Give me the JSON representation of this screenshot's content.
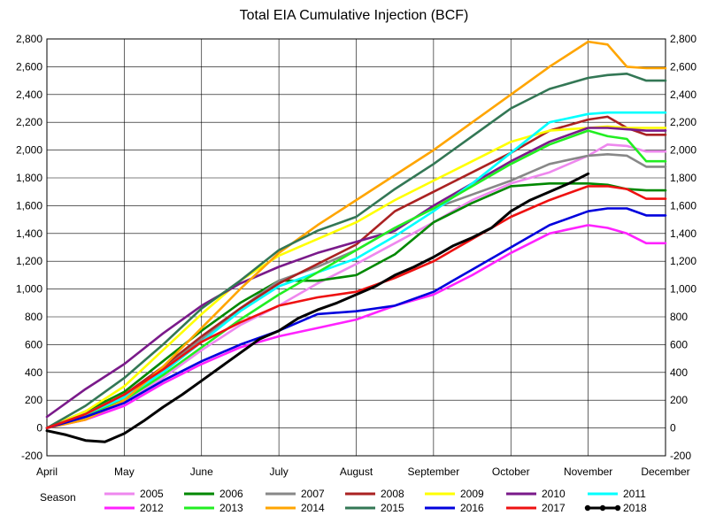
{
  "chart_data": {
    "type": "line",
    "title": "Total EIA Cumulative Injection (BCF)",
    "legend_title": "Season",
    "legend_placement": "bottom",
    "grid": true,
    "ylim": [
      -200,
      2800
    ],
    "y_ticks": [
      "-200",
      "0",
      "200",
      "400",
      "600",
      "800",
      "1,000",
      "1,200",
      "1,400",
      "1,600",
      "1,800",
      "2,000",
      "2,200",
      "2,400",
      "2,600",
      "2,800"
    ],
    "y_tick_values": [
      -200,
      0,
      200,
      400,
      600,
      800,
      1000,
      1200,
      1400,
      1600,
      1800,
      2000,
      2200,
      2400,
      2600,
      2800
    ],
    "x_months": [
      "April",
      "May",
      "June",
      "July",
      "August",
      "September",
      "October",
      "November",
      "December"
    ],
    "xlim": [
      0,
      8
    ],
    "series": [
      {
        "name": "2005",
        "color": "#ee88ee",
        "x": [
          0,
          0.5,
          1,
          1.5,
          2,
          2.5,
          3,
          3.5,
          4,
          4.5,
          5,
          5.5,
          6,
          6.5,
          7,
          7.25,
          7.5,
          7.75,
          8
        ],
        "y": [
          0,
          60,
          180,
          360,
          560,
          740,
          880,
          1040,
          1180,
          1330,
          1480,
          1640,
          1760,
          1840,
          1960,
          2040,
          2030,
          1990,
          1990
        ]
      },
      {
        "name": "2006",
        "color": "#008800",
        "x": [
          0,
          0.5,
          1,
          1.5,
          2,
          2.5,
          3,
          3.5,
          4,
          4.5,
          5,
          5.5,
          6,
          6.5,
          7,
          7.25,
          7.5,
          7.75,
          8
        ],
        "y": [
          0,
          120,
          260,
          480,
          700,
          900,
          1060,
          1060,
          1100,
          1250,
          1480,
          1620,
          1740,
          1760,
          1760,
          1750,
          1720,
          1710,
          1710
        ]
      },
      {
        "name": "2007",
        "color": "#888888",
        "x": [
          0,
          0.5,
          1,
          1.5,
          2,
          2.5,
          3,
          3.5,
          4,
          4.5,
          5,
          5.5,
          6,
          6.5,
          7,
          7.25,
          7.5,
          7.75,
          8
        ],
        "y": [
          0,
          80,
          220,
          420,
          640,
          860,
          1060,
          1160,
          1280,
          1440,
          1580,
          1680,
          1780,
          1900,
          1960,
          1970,
          1960,
          1880,
          1880
        ]
      },
      {
        "name": "2008",
        "color": "#aa2222",
        "x": [
          0,
          0.5,
          1,
          1.5,
          2,
          2.5,
          3,
          3.5,
          4,
          4.5,
          5,
          5.5,
          6,
          6.5,
          7,
          7.25,
          7.5,
          7.75,
          8
        ],
        "y": [
          0,
          100,
          240,
          440,
          660,
          860,
          1040,
          1180,
          1320,
          1560,
          1700,
          1840,
          1980,
          2140,
          2220,
          2240,
          2160,
          2110,
          2110
        ]
      },
      {
        "name": "2009",
        "color": "#ffff00",
        "x": [
          0,
          0.5,
          1,
          1.5,
          2,
          2.5,
          3,
          3.5,
          4,
          4.5,
          5,
          5.5,
          6,
          6.5,
          7,
          7.25,
          7.5,
          7.75,
          8
        ],
        "y": [
          0,
          120,
          300,
          560,
          820,
          1060,
          1240,
          1360,
          1480,
          1640,
          1780,
          1920,
          2060,
          2140,
          2160,
          2170,
          2160,
          2160,
          2160
        ]
      },
      {
        "name": "2010",
        "color": "#7a1a8a",
        "x": [
          0,
          0.5,
          1,
          1.5,
          2,
          2.5,
          3,
          3.5,
          4,
          4.5,
          5,
          5.5,
          6,
          6.5,
          7,
          7.25,
          7.5,
          7.75,
          8
        ],
        "y": [
          80,
          280,
          460,
          680,
          880,
          1040,
          1160,
          1260,
          1340,
          1420,
          1600,
          1760,
          1920,
          2060,
          2160,
          2160,
          2150,
          2140,
          2140
        ]
      },
      {
        "name": "2011",
        "color": "#00ffff",
        "x": [
          0,
          0.5,
          1,
          1.5,
          2,
          2.5,
          3,
          3.5,
          4,
          4.5,
          5,
          5.5,
          6,
          6.5,
          7,
          7.25,
          7.5,
          7.75,
          8
        ],
        "y": [
          0,
          100,
          220,
          400,
          620,
          840,
          1020,
          1120,
          1220,
          1380,
          1560,
          1760,
          1980,
          2200,
          2260,
          2270,
          2270,
          2270,
          2270
        ]
      },
      {
        "name": "2012",
        "color": "#ff22ff",
        "x": [
          0,
          0.5,
          1,
          1.5,
          2,
          2.5,
          3,
          3.5,
          4,
          4.5,
          5,
          5.5,
          6,
          6.5,
          7,
          7.25,
          7.5,
          7.75,
          8
        ],
        "y": [
          0,
          60,
          160,
          320,
          460,
          580,
          660,
          720,
          780,
          880,
          960,
          1100,
          1260,
          1400,
          1460,
          1440,
          1400,
          1330,
          1330
        ]
      },
      {
        "name": "2013",
        "color": "#22ee22",
        "x": [
          0,
          0.5,
          1,
          1.5,
          2,
          2.5,
          3,
          3.5,
          4,
          4.5,
          5,
          5.5,
          6,
          6.5,
          7,
          7.25,
          7.5,
          7.75,
          8
        ],
        "y": [
          0,
          80,
          200,
          380,
          580,
          780,
          960,
          1120,
          1280,
          1440,
          1580,
          1740,
          1900,
          2040,
          2140,
          2100,
          2080,
          1920,
          1920
        ]
      },
      {
        "name": "2014",
        "color": "#ffa500",
        "x": [
          0,
          0.5,
          1,
          1.5,
          2,
          2.5,
          3,
          3.5,
          4,
          4.5,
          5,
          5.5,
          6,
          6.5,
          7,
          7.25,
          7.5,
          7.75,
          8
        ],
        "y": [
          0,
          60,
          200,
          440,
          720,
          1000,
          1260,
          1460,
          1640,
          1820,
          2000,
          2200,
          2400,
          2600,
          2780,
          2760,
          2600,
          2590,
          2590
        ]
      },
      {
        "name": "2015",
        "color": "#337755",
        "x": [
          0,
          0.5,
          1,
          1.5,
          2,
          2.5,
          3,
          3.5,
          4,
          4.5,
          5,
          5.5,
          6,
          6.5,
          7,
          7.25,
          7.5,
          7.75,
          8
        ],
        "y": [
          0,
          160,
          360,
          600,
          860,
          1060,
          1280,
          1420,
          1520,
          1720,
          1900,
          2100,
          2300,
          2440,
          2520,
          2540,
          2550,
          2500,
          2500
        ]
      },
      {
        "name": "2016",
        "color": "#0000dd",
        "x": [
          0,
          0.5,
          1,
          1.5,
          2,
          2.5,
          3,
          3.5,
          4,
          4.5,
          5,
          5.5,
          6,
          6.5,
          7,
          7.25,
          7.5,
          7.75,
          8
        ],
        "y": [
          0,
          80,
          180,
          340,
          480,
          600,
          700,
          820,
          840,
          880,
          980,
          1140,
          1300,
          1460,
          1560,
          1580,
          1580,
          1530,
          1530
        ]
      },
      {
        "name": "2017",
        "color": "#ee1111",
        "x": [
          0,
          0.5,
          1,
          1.5,
          2,
          2.5,
          3,
          3.5,
          4,
          4.5,
          5,
          5.5,
          6,
          6.5,
          7,
          7.25,
          7.5,
          7.75,
          8
        ],
        "y": [
          0,
          100,
          240,
          420,
          620,
          760,
          880,
          940,
          980,
          1080,
          1200,
          1360,
          1520,
          1640,
          1740,
          1740,
          1720,
          1650,
          1650
        ]
      },
      {
        "name": "2018",
        "color": "#000000",
        "x": [
          0,
          0.25,
          0.5,
          0.75,
          1,
          1.25,
          1.5,
          1.75,
          2,
          2.25,
          2.5,
          2.75,
          3,
          3.25,
          3.5,
          3.75,
          4,
          4.25,
          4.5,
          4.75,
          5,
          5.25,
          5.5,
          5.75,
          6,
          6.25,
          6.5,
          6.75,
          7
        ],
        "y": [
          -20,
          -50,
          -90,
          -100,
          -40,
          50,
          150,
          240,
          340,
          440,
          540,
          640,
          700,
          790,
          850,
          900,
          960,
          1020,
          1100,
          1160,
          1230,
          1310,
          1370,
          1440,
          1560,
          1640,
          1700,
          1760,
          1830
        ]
      }
    ]
  }
}
